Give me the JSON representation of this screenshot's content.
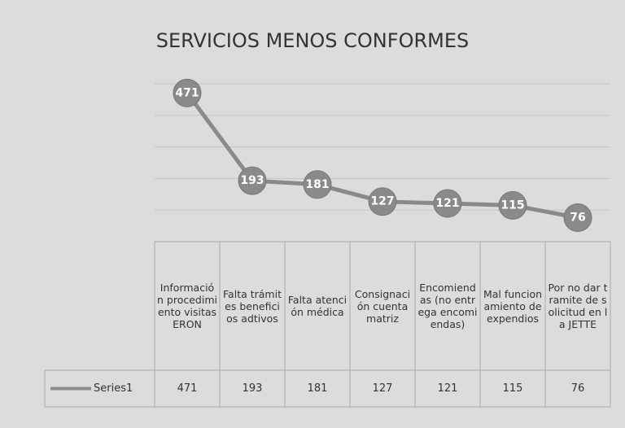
{
  "chart_data": {
    "type": "line",
    "title": "SERVICIOS MENOS CONFORMES",
    "categories": [
      "Información procedimiento visitas ERON",
      "Falta trámites beneficios adtivos",
      "Falta atención médica",
      "Consignación cuenta matriz",
      "Encomiendas (no entrega encomiendas)",
      "Mal funcionamiento de expendios",
      "Por no dar tramite de solicitud en la JETTE"
    ],
    "series": [
      {
        "name": "Series1",
        "color": "#8a8a8a",
        "values": [
          471,
          193,
          181,
          127,
          121,
          115,
          76
        ]
      }
    ],
    "ylim": [
      0,
      500
    ],
    "yticks": [
      0,
      100,
      200,
      300,
      400,
      500
    ],
    "grid": true,
    "data_table": true
  }
}
